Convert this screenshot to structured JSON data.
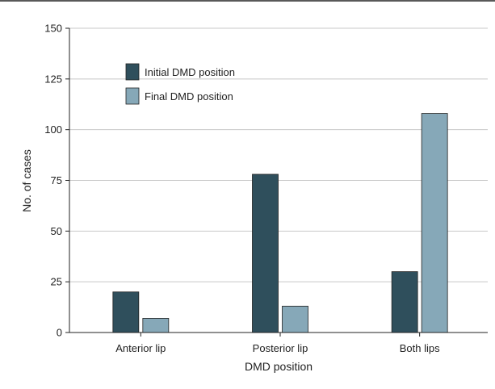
{
  "chart_data": {
    "type": "bar",
    "categories": [
      "Anterior lip",
      "Posterior lip",
      "Both lips"
    ],
    "series": [
      {
        "name": "Initial DMD position",
        "values": [
          20,
          78,
          30
        ],
        "color": "#2f4f5c"
      },
      {
        "name": "Final DMD position",
        "values": [
          7,
          13,
          108
        ],
        "color": "#86a8b8"
      }
    ],
    "title": "",
    "xlabel": "DMD position",
    "ylabel": "No. of cases",
    "ylim": [
      0,
      150
    ],
    "yticks": [
      0,
      25,
      50,
      75,
      100,
      125,
      150
    ],
    "grid": true,
    "legend_position": "top-left"
  }
}
